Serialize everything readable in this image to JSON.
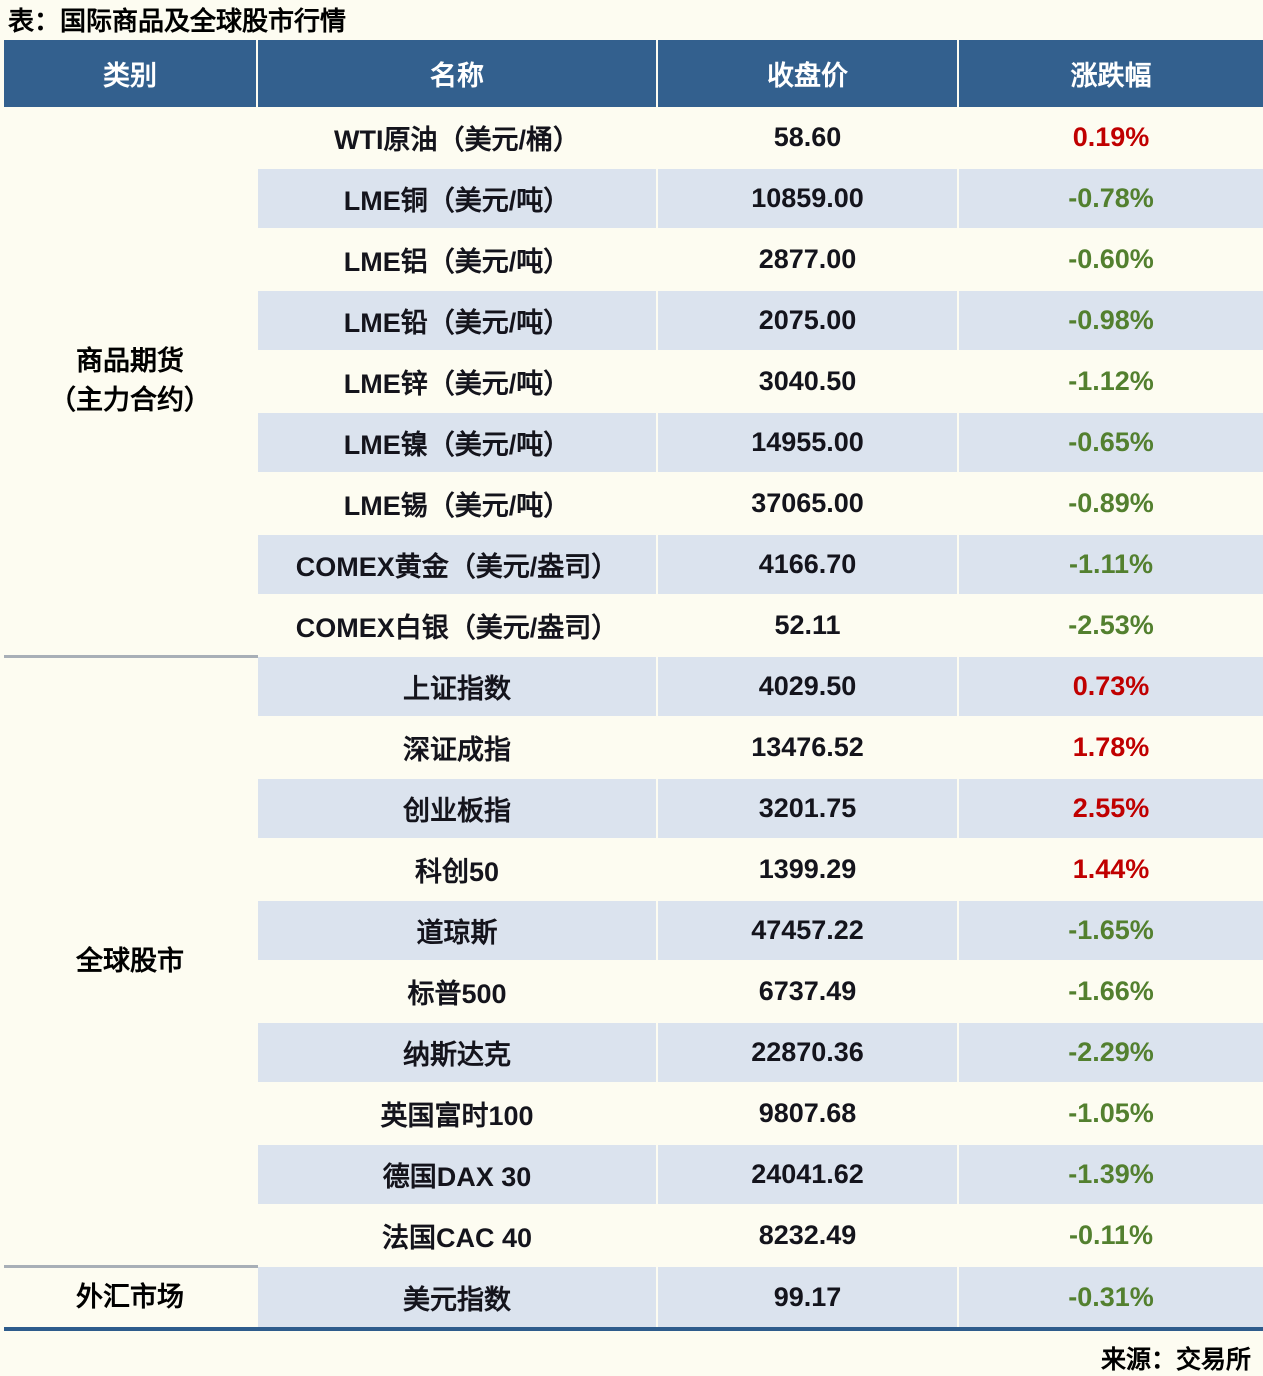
{
  "title": "表：国际商品及全球股市行情",
  "source": "来源：交易所",
  "colors": {
    "header_bg": "#33608E",
    "row_blue": "#DBE3EE",
    "row_white": "#FDFCF1",
    "up_red": "#C00000",
    "down_green": "#53802F",
    "text_dark": "#14141C",
    "bottom_rule": "#2E5C8C",
    "group_line": "#A8AFB7"
  },
  "table": {
    "headers": [
      "类别",
      "名称",
      "收盘价",
      "涨跌幅"
    ],
    "groups": [
      {
        "category_lines": [
          "商品期货",
          "（主力合约）"
        ],
        "rows": [
          {
            "name": "WTI原油（美元/桶）",
            "close": "58.60",
            "change": "0.19%",
            "direction": "up"
          },
          {
            "name": "LME铜（美元/吨）",
            "close": "10859.00",
            "change": "-0.78%",
            "direction": "down"
          },
          {
            "name": "LME铝（美元/吨）",
            "close": "2877.00",
            "change": "-0.60%",
            "direction": "down"
          },
          {
            "name": "LME铅（美元/吨）",
            "close": "2075.00",
            "change": "-0.98%",
            "direction": "down"
          },
          {
            "name": "LME锌（美元/吨）",
            "close": "3040.50",
            "change": "-1.12%",
            "direction": "down"
          },
          {
            "name": "LME镍（美元/吨）",
            "close": "14955.00",
            "change": "-0.65%",
            "direction": "down"
          },
          {
            "name": "LME锡（美元/吨）",
            "close": "37065.00",
            "change": "-0.89%",
            "direction": "down"
          },
          {
            "name": "COMEX黄金（美元/盎司）",
            "close": "4166.70",
            "change": "-1.11%",
            "direction": "down"
          },
          {
            "name": "COMEX白银（美元/盎司）",
            "close": "52.11",
            "change": "-2.53%",
            "direction": "down"
          }
        ]
      },
      {
        "category_lines": [
          "全球股市"
        ],
        "rows": [
          {
            "name": "上证指数",
            "close": "4029.50",
            "change": "0.73%",
            "direction": "up"
          },
          {
            "name": "深证成指",
            "close": "13476.52",
            "change": "1.78%",
            "direction": "up"
          },
          {
            "name": "创业板指",
            "close": "3201.75",
            "change": "2.55%",
            "direction": "up"
          },
          {
            "name": "科创50",
            "close": "1399.29",
            "change": "1.44%",
            "direction": "up"
          },
          {
            "name": "道琼斯",
            "close": "47457.22",
            "change": "-1.65%",
            "direction": "down"
          },
          {
            "name": "标普500",
            "close": "6737.49",
            "change": "-1.66%",
            "direction": "down"
          },
          {
            "name": "纳斯达克",
            "close": "22870.36",
            "change": "-2.29%",
            "direction": "down"
          },
          {
            "name": "英国富时100",
            "close": "9807.68",
            "change": "-1.05%",
            "direction": "down"
          },
          {
            "name": "德国DAX 30",
            "close": "24041.62",
            "change": "-1.39%",
            "direction": "down"
          },
          {
            "name": "法国CAC 40",
            "close": "8232.49",
            "change": "-0.11%",
            "direction": "down"
          }
        ]
      },
      {
        "category_lines": [
          "外汇市场"
        ],
        "rows": [
          {
            "name": "美元指数",
            "close": "99.17",
            "change": "-0.31%",
            "direction": "down"
          }
        ]
      }
    ]
  }
}
